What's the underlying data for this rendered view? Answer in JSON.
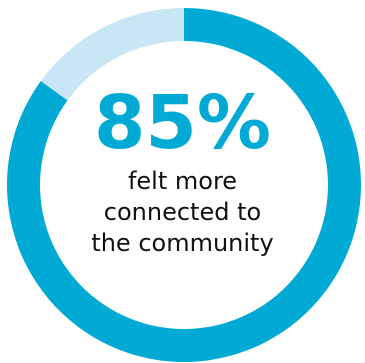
{
  "chart_data": {
    "type": "pie",
    "variant": "donut",
    "slices": [
      {
        "label": "felt more connected to the community",
        "value": 85,
        "color": "#00aad4"
      },
      {
        "label": "",
        "value": 15,
        "color": "#c8e6f4"
      }
    ],
    "center_value": "85%",
    "caption_lines": [
      "felt more",
      "connected to",
      "the community"
    ]
  },
  "colors": {
    "accent": "#00aad4",
    "remainder": "#c8e6f4",
    "caption_text": "#111111"
  }
}
